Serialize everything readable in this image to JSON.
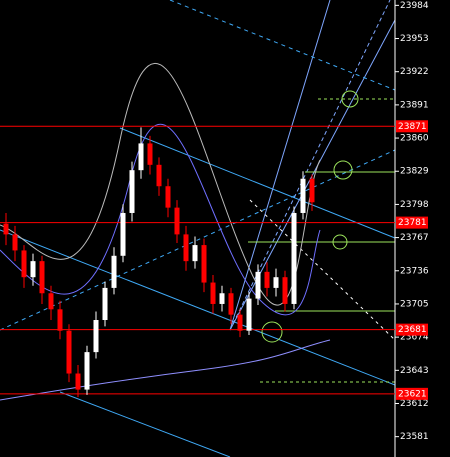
{
  "chart_data": {
    "type": "candlestick",
    "ylim": [
      23562,
      23989
    ],
    "yticks": [
      23984,
      23953,
      23922,
      23891,
      23860,
      23829,
      23798,
      23767,
      23736,
      23705,
      23674,
      23643,
      23612,
      23581
    ],
    "open": [
      23780,
      23770,
      23755,
      23730,
      23745,
      23715,
      23700,
      23680,
      23640,
      23625,
      23660,
      23690,
      23720,
      23750,
      23790,
      23830,
      23855,
      23835,
      23815,
      23795,
      23770,
      23745,
      23760,
      23725,
      23705,
      23715,
      23695,
      23680,
      23710,
      23735,
      23720,
      23730,
      23705,
      23790,
      23822
    ],
    "high": [
      23790,
      23778,
      23760,
      23752,
      23750,
      23722,
      23708,
      23686,
      23648,
      23666,
      23698,
      23726,
      23758,
      23798,
      23838,
      23870,
      23862,
      23842,
      23822,
      23802,
      23778,
      23768,
      23766,
      23732,
      23722,
      23720,
      23700,
      23716,
      23742,
      23744,
      23738,
      23736,
      23796,
      23829,
      23826
    ],
    "low": [
      23760,
      23745,
      23720,
      23722,
      23705,
      23690,
      23672,
      23632,
      23618,
      23620,
      23654,
      23684,
      23714,
      23744,
      23782,
      23822,
      23826,
      23806,
      23786,
      23762,
      23736,
      23738,
      23716,
      23696,
      23698,
      23686,
      23674,
      23676,
      23704,
      23712,
      23712,
      23698,
      23700,
      23784,
      23792
    ],
    "close": [
      23770,
      23755,
      23730,
      23745,
      23715,
      23700,
      23680,
      23640,
      23625,
      23660,
      23690,
      23720,
      23750,
      23790,
      23830,
      23855,
      23835,
      23815,
      23795,
      23770,
      23745,
      23760,
      23725,
      23705,
      23715,
      23695,
      23680,
      23710,
      23735,
      23720,
      23730,
      23705,
      23790,
      23822,
      23800
    ],
    "up_color": "#ffffff",
    "down_color": "#ff0000",
    "levels": [
      23871,
      23781,
      23681,
      23621
    ],
    "level_color": "#ff0000"
  }
}
